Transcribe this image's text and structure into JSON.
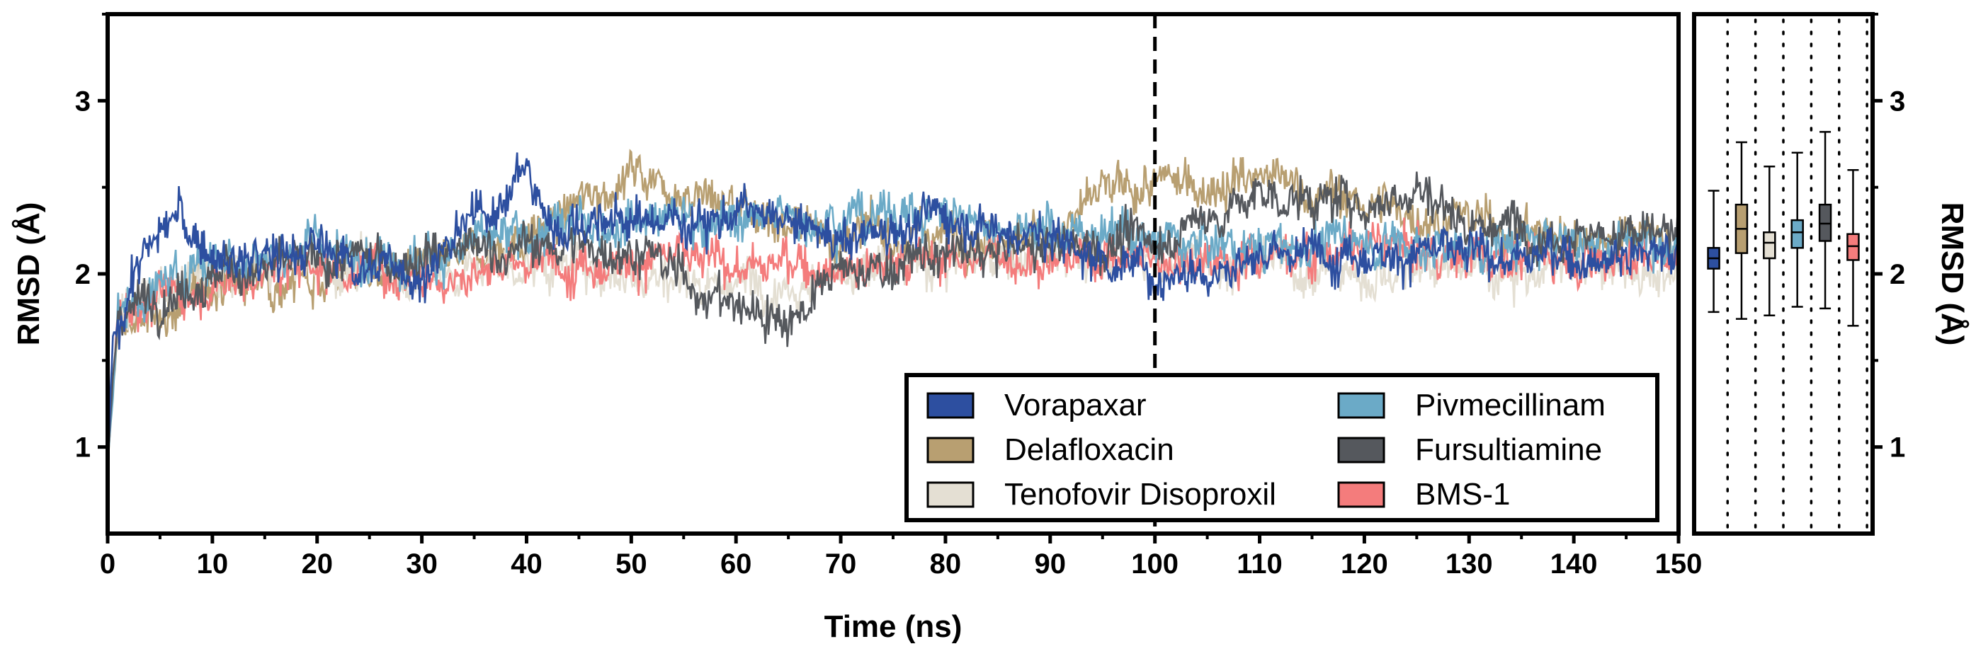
{
  "chart_data": [
    {
      "type": "line",
      "title": "",
      "xlabel": "Time (ns)",
      "ylabel": "RMSD (Å)",
      "xlim": [
        0,
        150
      ],
      "ylim": [
        0.5,
        3.5
      ],
      "xticks": [
        0,
        10,
        20,
        30,
        40,
        50,
        60,
        70,
        80,
        90,
        100,
        110,
        120,
        130,
        140,
        150
      ],
      "yticks": [
        1,
        2,
        3
      ],
      "reference_line_x": 100,
      "legend_position": "bottom-right",
      "series": [
        {
          "name": "Vorapaxar",
          "color": "#2D4FA0",
          "trend": [
            [
              0,
              0.9
            ],
            [
              0.5,
              1.6
            ],
            [
              3,
              2.1
            ],
            [
              7,
              2.35
            ],
            [
              8,
              2.2
            ],
            [
              12,
              2.05
            ],
            [
              20,
              2.15
            ],
            [
              25,
              2.05
            ],
            [
              30,
              2.0
            ],
            [
              35,
              2.3
            ],
            [
              40,
              2.6
            ],
            [
              42,
              2.3
            ],
            [
              50,
              2.3
            ],
            [
              60,
              2.35
            ],
            [
              70,
              2.2
            ],
            [
              80,
              2.35
            ],
            [
              90,
              2.2
            ],
            [
              100,
              2.0
            ],
            [
              110,
              2.1
            ],
            [
              120,
              2.15
            ],
            [
              130,
              2.1
            ],
            [
              140,
              2.1
            ],
            [
              150,
              2.15
            ]
          ]
        },
        {
          "name": "Delafloxacin",
          "color": "#B89F71",
          "trend": [
            [
              0,
              0.85
            ],
            [
              1,
              1.7
            ],
            [
              5,
              1.75
            ],
            [
              10,
              1.95
            ],
            [
              20,
              2.0
            ],
            [
              30,
              2.0
            ],
            [
              40,
              2.2
            ],
            [
              50,
              2.6
            ],
            [
              60,
              2.4
            ],
            [
              70,
              2.2
            ],
            [
              80,
              2.25
            ],
            [
              90,
              2.2
            ],
            [
              95,
              2.45
            ],
            [
              100,
              2.5
            ],
            [
              110,
              2.55
            ],
            [
              120,
              2.4
            ],
            [
              130,
              2.3
            ],
            [
              140,
              2.2
            ],
            [
              150,
              2.2
            ]
          ]
        },
        {
          "name": "Tenofovir Disoproxil",
          "color": "#E4DFD3",
          "trend": [
            [
              0,
              0.9
            ],
            [
              1,
              1.8
            ],
            [
              10,
              2.0
            ],
            [
              20,
              2.05
            ],
            [
              30,
              2.0
            ],
            [
              40,
              2.05
            ],
            [
              50,
              2.0
            ],
            [
              60,
              1.95
            ],
            [
              70,
              2.0
            ],
            [
              80,
              2.05
            ],
            [
              90,
              2.1
            ],
            [
              100,
              2.1
            ],
            [
              110,
              2.05
            ],
            [
              120,
              2.0
            ],
            [
              130,
              2.05
            ],
            [
              140,
              2.0
            ],
            [
              150,
              2.0
            ]
          ]
        },
        {
          "name": "Pivmecillinam",
          "color": "#6BAAC7",
          "trend": [
            [
              0,
              0.9
            ],
            [
              1,
              1.8
            ],
            [
              10,
              2.1
            ],
            [
              20,
              2.15
            ],
            [
              30,
              2.1
            ],
            [
              40,
              2.2
            ],
            [
              50,
              2.35
            ],
            [
              60,
              2.3
            ],
            [
              70,
              2.35
            ],
            [
              80,
              2.35
            ],
            [
              90,
              2.25
            ],
            [
              100,
              2.2
            ],
            [
              110,
              2.15
            ],
            [
              120,
              2.2
            ],
            [
              130,
              2.15
            ],
            [
              140,
              2.2
            ],
            [
              150,
              2.2
            ]
          ]
        },
        {
          "name": "Fursultiamine",
          "color": "#55585D",
          "trend": [
            [
              0,
              0.9
            ],
            [
              1,
              1.8
            ],
            [
              10,
              2.0
            ],
            [
              20,
              2.05
            ],
            [
              30,
              2.1
            ],
            [
              40,
              2.15
            ],
            [
              50,
              2.15
            ],
            [
              60,
              1.8
            ],
            [
              65,
              1.75
            ],
            [
              70,
              2.0
            ],
            [
              80,
              2.1
            ],
            [
              90,
              2.15
            ],
            [
              100,
              2.2
            ],
            [
              110,
              2.45
            ],
            [
              120,
              2.4
            ],
            [
              125,
              2.5
            ],
            [
              130,
              2.3
            ],
            [
              140,
              2.25
            ],
            [
              150,
              2.2
            ]
          ]
        },
        {
          "name": "BMS-1",
          "color": "#F47C7C",
          "trend": [
            [
              0,
              0.9
            ],
            [
              1,
              1.8
            ],
            [
              10,
              1.95
            ],
            [
              20,
              2.05
            ],
            [
              30,
              2.0
            ],
            [
              40,
              2.05
            ],
            [
              50,
              2.1
            ],
            [
              60,
              2.05
            ],
            [
              70,
              2.05
            ],
            [
              80,
              2.1
            ],
            [
              90,
              2.1
            ],
            [
              100,
              2.1
            ],
            [
              110,
              2.1
            ],
            [
              120,
              2.15
            ],
            [
              130,
              2.1
            ],
            [
              140,
              2.1
            ],
            [
              150,
              2.1
            ]
          ]
        }
      ]
    },
    {
      "type": "box",
      "ylabel": "RMSD (Å)",
      "ylim": [
        0.5,
        3.5
      ],
      "yticks": [
        1,
        2,
        3
      ],
      "boxes": [
        {
          "name": "Vorapaxar",
          "color": "#2D4FA0",
          "min": 1.78,
          "q1": 2.03,
          "median": 2.09,
          "q3": 2.15,
          "max": 2.48
        },
        {
          "name": "Delafloxacin",
          "color": "#B89F71",
          "min": 1.74,
          "q1": 2.12,
          "median": 2.26,
          "q3": 2.4,
          "max": 2.76
        },
        {
          "name": "Tenofovir Disoproxil",
          "color": "#E4DFD3",
          "min": 1.76,
          "q1": 2.09,
          "median": 2.18,
          "q3": 2.24,
          "max": 2.62
        },
        {
          "name": "Pivmecillinam",
          "color": "#6BAAC7",
          "min": 1.81,
          "q1": 2.15,
          "median": 2.24,
          "q3": 2.31,
          "max": 2.7
        },
        {
          "name": "Fursultiamine",
          "color": "#55585D",
          "min": 1.8,
          "q1": 2.19,
          "median": 2.29,
          "q3": 2.4,
          "max": 2.82
        },
        {
          "name": "BMS-1",
          "color": "#F47C7C",
          "min": 1.7,
          "q1": 2.08,
          "median": 2.16,
          "q3": 2.23,
          "max": 2.6
        }
      ]
    }
  ]
}
